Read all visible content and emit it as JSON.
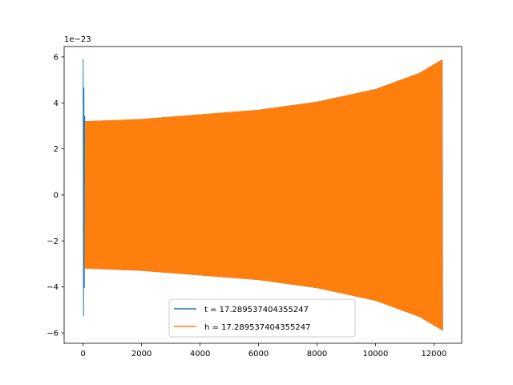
{
  "chart_data": {
    "type": "line",
    "title": "",
    "xlabel": "",
    "ylabel": "",
    "y_scale_label": "1e−23",
    "xlim": [
      -650,
      12950
    ],
    "ylim": [
      -6.45,
      6.45
    ],
    "x_ticks": [
      0,
      2000,
      4000,
      6000,
      8000,
      10000,
      12000
    ],
    "x_tick_labels": [
      "0",
      "2000",
      "4000",
      "6000",
      "8000",
      "10000",
      "12000"
    ],
    "y_ticks": [
      -6,
      -4,
      -2,
      0,
      2,
      4,
      6
    ],
    "y_tick_labels": [
      "−6",
      "−4",
      "−2",
      "0",
      "2",
      "4",
      "6"
    ],
    "grid": false,
    "legend_position": "lower center",
    "series": [
      {
        "name": "t = 17.289537404355247",
        "color": "#1f77b4",
        "x_range": [
          0,
          12300
        ],
        "amplitude_envelope": [
          {
            "x": 0,
            "amp": 5.9
          },
          {
            "x": 60,
            "amp": 3.2
          },
          {
            "x": 2000,
            "amp": 3.3
          },
          {
            "x": 4000,
            "amp": 3.5
          },
          {
            "x": 6000,
            "amp": 3.7
          },
          {
            "x": 8000,
            "amp": 4.05
          },
          {
            "x": 10000,
            "amp": 4.6
          },
          {
            "x": 11500,
            "amp": 5.3
          },
          {
            "x": 12300,
            "amp": 5.9
          }
        ]
      },
      {
        "name": "h = 17.289537404355247",
        "color": "#ff7f0e",
        "x_range": [
          60,
          12300
        ],
        "amplitude_envelope": [
          {
            "x": 60,
            "amp": 3.2
          },
          {
            "x": 2000,
            "amp": 3.3
          },
          {
            "x": 4000,
            "amp": 3.5
          },
          {
            "x": 6000,
            "amp": 3.7
          },
          {
            "x": 8000,
            "amp": 4.05
          },
          {
            "x": 10000,
            "amp": 4.6
          },
          {
            "x": 11500,
            "amp": 5.3
          },
          {
            "x": 12300,
            "amp": 5.9
          }
        ]
      }
    ]
  }
}
